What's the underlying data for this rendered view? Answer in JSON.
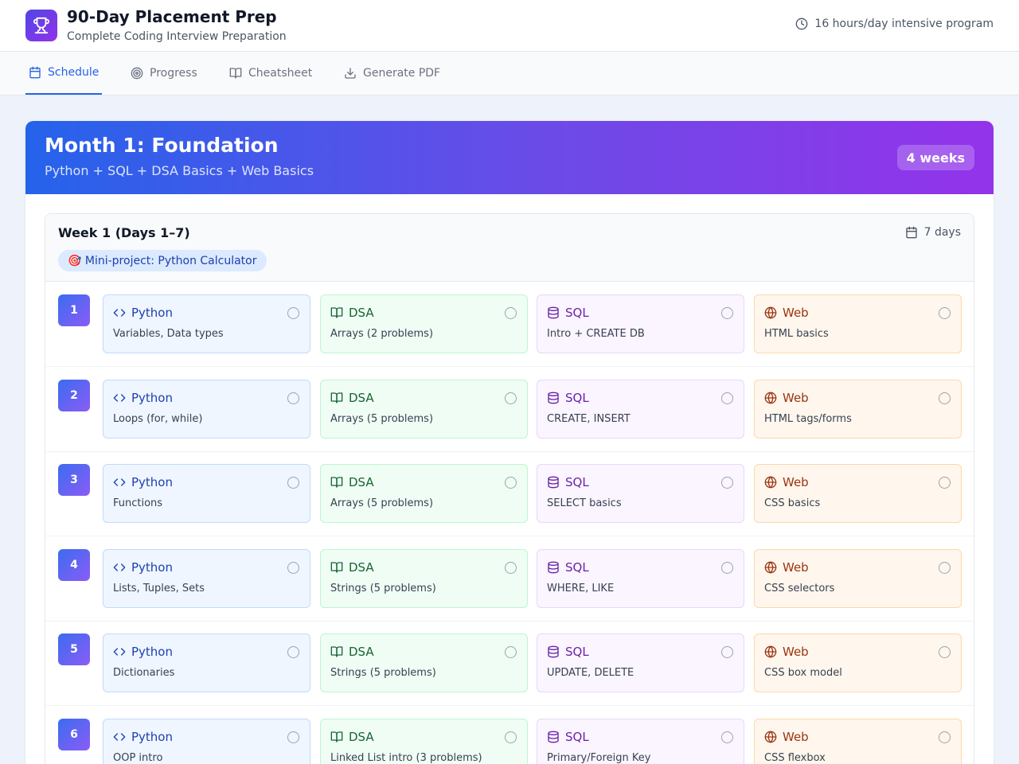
{
  "header": {
    "title": "90-Day Placement Prep",
    "subtitle": "Complete Coding Interview Preparation",
    "hours_text": "16 hours/day intensive program",
    "logo_icon": "trophy-icon"
  },
  "tabs": [
    {
      "label": "Schedule",
      "icon": "calendar-icon",
      "active": true
    },
    {
      "label": "Progress",
      "icon": "target-icon",
      "active": false
    },
    {
      "label": "Cheatsheet",
      "icon": "book-icon",
      "active": false
    },
    {
      "label": "Generate PDF",
      "icon": "download-icon",
      "active": false
    }
  ],
  "month": {
    "title": "Month 1: Foundation",
    "subtitle": "Python + SQL + DSA Basics + Web Basics",
    "badge": "4 weeks"
  },
  "week": {
    "title": "Week 1 (Days 1–7)",
    "days": "7 days",
    "mini_project": "🎯 Mini-project: Python Calculator"
  },
  "subjects": {
    "python": "Python",
    "dsa": "DSA",
    "sql": "SQL",
    "web": "Web"
  },
  "colors": {
    "accent": "#2563eb",
    "python": "#1e40af",
    "dsa": "#166534",
    "sql": "#6b21a8",
    "web": "#9a3412"
  },
  "days": [
    {
      "num": "1",
      "python": "Variables, Data types",
      "dsa": "Arrays (2 problems)",
      "sql": "Intro + CREATE DB",
      "web": "HTML basics"
    },
    {
      "num": "2",
      "python": "Loops (for, while)",
      "dsa": "Arrays (5 problems)",
      "sql": "CREATE, INSERT",
      "web": "HTML tags/forms"
    },
    {
      "num": "3",
      "python": "Functions",
      "dsa": "Arrays (5 problems)",
      "sql": "SELECT basics",
      "web": "CSS basics"
    },
    {
      "num": "4",
      "python": "Lists, Tuples, Sets",
      "dsa": "Strings (5 problems)",
      "sql": "WHERE, LIKE",
      "web": "CSS selectors"
    },
    {
      "num": "5",
      "python": "Dictionaries",
      "dsa": "Strings (5 problems)",
      "sql": "UPDATE, DELETE",
      "web": "CSS box model"
    },
    {
      "num": "6",
      "python": "OOP intro",
      "dsa": "Linked List intro (3 problems)",
      "sql": "Primary/Foreign Key",
      "web": "CSS flexbox"
    }
  ]
}
